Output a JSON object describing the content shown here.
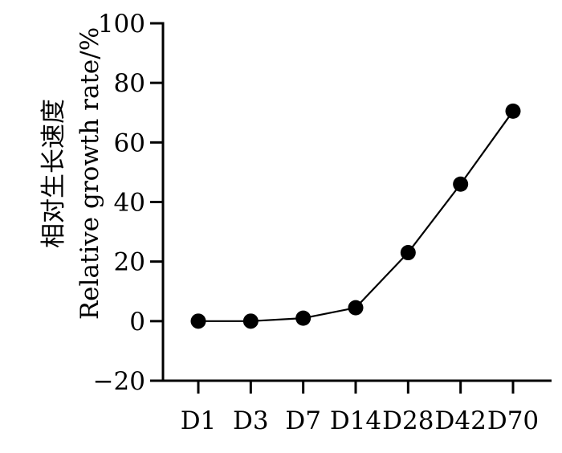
{
  "chart_data": {
    "type": "line",
    "categories": [
      "D1",
      "D3",
      "D7",
      "D14",
      "D28",
      "D42",
      "D70"
    ],
    "series": [
      {
        "values": [
          0,
          0,
          1,
          4.5,
          23,
          46,
          70.5
        ]
      }
    ],
    "title": "",
    "xlabel": "",
    "ylabel_line1": "相对生长速度",
    "ylabel_line2": "Relative growth rate/%",
    "ylim": [
      -20,
      100
    ],
    "yticks": [
      -20,
      0,
      20,
      40,
      60,
      80,
      100
    ],
    "ytick_labels": [
      "−20",
      "0",
      "20",
      "40",
      "60",
      "80",
      "100"
    ],
    "grid": false,
    "legend": "none",
    "line_color": "#000000",
    "marker_color": "#000000"
  }
}
